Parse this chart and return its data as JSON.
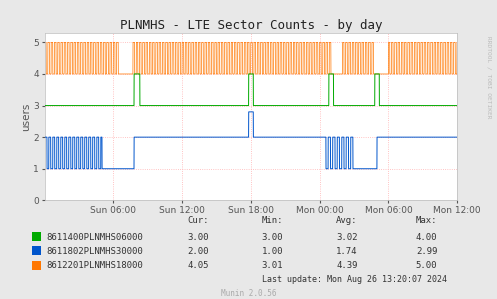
{
  "title": "PLNMHS - LTE Sector Counts - by day",
  "ylabel": "users",
  "background_color": "#e8e8e8",
  "plot_bg_color": "#ffffff",
  "grid_color": "#ffb0b0",
  "ylim": [
    0.0,
    5.3
  ],
  "yticks": [
    0.0,
    1.0,
    2.0,
    3.0,
    4.0,
    5.0
  ],
  "xlabel_ticks": [
    "Sun 06:00",
    "Sun 12:00",
    "Sun 18:00",
    "Mon 00:00",
    "Mon 06:00",
    "Mon 12:00"
  ],
  "tick_hours": [
    6,
    12,
    18,
    24,
    30,
    36
  ],
  "total_hours": 36,
  "colors": {
    "green": "#00aa00",
    "blue": "#0055cc",
    "orange": "#ff7700"
  },
  "legend": [
    {
      "label": "8611400PLNMHS06000",
      "color": "#00aa00",
      "cur": "3.00",
      "min": "3.00",
      "avg": "3.02",
      "max": "4.00"
    },
    {
      "label": "8611802PLNMHS30000",
      "color": "#0055cc",
      "cur": "2.00",
      "min": "1.00",
      "avg": "1.74",
      "max": "2.99"
    },
    {
      "label": "8612201PLNMHS18000",
      "color": "#ff7700",
      "cur": "4.05",
      "min": "3.01",
      "avg": "4.39",
      "max": "5.00"
    }
  ],
  "last_update": "Last update: Mon Aug 26 13:20:07 2024",
  "munin_version": "Munin 2.0.56",
  "rrdtool_label": "RRDTOOL / TOBI OETIKER"
}
